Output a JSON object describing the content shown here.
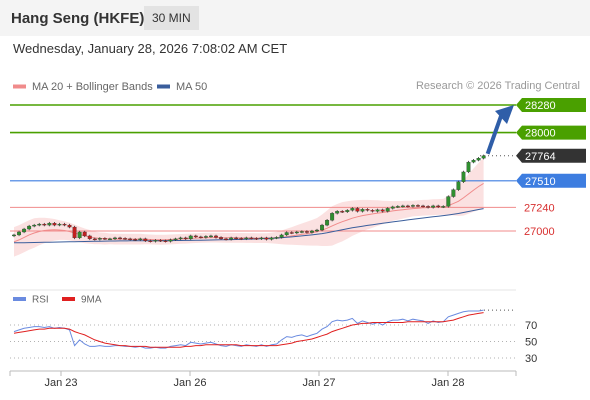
{
  "header": {
    "title": "Hang Seng (HKFE)",
    "interval": "30 MIN"
  },
  "datetime": "Wednesday, January 28, 2026 7:08:02 AM CET",
  "credit": "Research © 2026 Trading Central",
  "legend_main": [
    {
      "label": "MA 20 + Bollinger Bands",
      "color": "#f08b8b"
    },
    {
      "label": "MA 50",
      "color": "#3a5e9c"
    }
  ],
  "legend_rsi": [
    {
      "label": "RSI",
      "color": "#6a8be0"
    },
    {
      "label": "9MA",
      "color": "#e02020"
    }
  ],
  "colors": {
    "green": "#4aa000",
    "blue": "#3d7de0",
    "red": "#f08b8b",
    "dark": "#333333",
    "arrow": "#2f5ea8"
  },
  "chart_data": {
    "type": "candlestick",
    "x_tick_labels": [
      "Jan 23",
      "Jan 26",
      "Jan 27",
      "Jan 28"
    ],
    "levels": [
      {
        "value": 28280,
        "label": "28280",
        "style": "green"
      },
      {
        "value": 28000,
        "label": "28000",
        "style": "green"
      },
      {
        "value": 27764,
        "label": "27764",
        "style": "dark"
      },
      {
        "value": 27510,
        "label": "27510",
        "style": "blue"
      },
      {
        "value": 27240,
        "label": "27240",
        "style": "red"
      },
      {
        "value": 27000,
        "label": "27000",
        "style": "red"
      }
    ],
    "close": [
      26960,
      26990,
      27020,
      27050,
      27060,
      27070,
      27060,
      27080,
      27060,
      27070,
      27060,
      27040,
      26930,
      26990,
      26950,
      26920,
      26915,
      26925,
      26920,
      26920,
      26930,
      26925,
      26920,
      26915,
      26910,
      26920,
      26900,
      26895,
      26905,
      26900,
      26895,
      26910,
      26920,
      26930,
      26920,
      26950,
      26940,
      26935,
      26945,
      26950,
      26935,
      26920,
      26915,
      26930,
      26925,
      26920,
      26930,
      26925,
      26920,
      26930,
      26915,
      26930,
      26935,
      26960,
      26985,
      26980,
      26990,
      26995,
      26985,
      27000,
      27010,
      27060,
      27110,
      27180,
      27200,
      27195,
      27210,
      27230,
      27200,
      27220,
      27210,
      27200,
      27215,
      27200,
      27230,
      27245,
      27250,
      27255,
      27250,
      27260,
      27255,
      27250,
      27240,
      27255,
      27245,
      27250,
      27350,
      27420,
      27500,
      27600,
      27700,
      27720,
      27740,
      27764
    ],
    "ma20": [
      26890,
      26910,
      26935,
      26960,
      26980,
      26995,
      27005,
      27010,
      27012,
      27010,
      27005,
      26995,
      26980,
      26965,
      26950,
      26940,
      26930,
      26925,
      26922,
      26920,
      26918,
      26918,
      26918,
      26918,
      26918,
      26918,
      26916,
      26914,
      26912,
      26911,
      26912,
      26914,
      26917,
      26920,
      26922,
      26925,
      26928,
      26930,
      26932,
      26933,
      26933,
      26932,
      26931,
      26931,
      26930,
      26930,
      26929,
      26929,
      26928,
      26928,
      26928,
      26929,
      26931,
      26935,
      26942,
      26950,
      26958,
      26966,
      26973,
      26982,
      26992,
      27008,
      27028,
      27052,
      27074,
      27094,
      27112,
      27130,
      27144,
      27156,
      27166,
      27174,
      27182,
      27188,
      27196,
      27204,
      27210,
      27216,
      27222,
      27228,
      27232,
      27236,
      27238,
      27242,
      27244,
      27246,
      27258,
      27278,
      27302,
      27336,
      27376,
      27416,
      27452,
      27484
    ],
    "ma50": [
      26880,
      26880,
      26881,
      26882,
      26883,
      26884,
      26885,
      26886,
      26887,
      26888,
      26889,
      26890,
      26891,
      26892,
      26893,
      26894,
      26895,
      26896,
      26897,
      26898,
      26898,
      26899,
      26899,
      26900,
      26900,
      26900,
      26901,
      26901,
      26901,
      26902,
      26902,
      26902,
      26903,
      26903,
      26904,
      26905,
      26906,
      26907,
      26908,
      26909,
      26910,
      26911,
      26912,
      26913,
      26914,
      26915,
      26916,
      26918,
      26920,
      26922,
      26924,
      26926,
      26928,
      26932,
      26936,
      26940,
      26945,
      26950,
      26955,
      26960,
      26966,
      26974,
      26982,
      26992,
      27002,
      27012,
      27022,
      27032,
      27041,
      27049,
      27057,
      27064,
      27071,
      27078,
      27085,
      27092,
      27099,
      27106,
      27113,
      27120,
      27126,
      27132,
      27138,
      27144,
      27150,
      27156,
      27163,
      27170,
      27178,
      27188,
      27198,
      27208,
      27218,
      27228
    ],
    "bb_width": [
      150,
      150,
      150,
      150,
      150,
      140,
      130,
      120,
      110,
      100,
      95,
      90,
      85,
      80,
      75,
      70,
      65,
      60,
      60,
      55,
      55,
      55,
      55,
      55,
      55,
      55,
      50,
      50,
      50,
      50,
      50,
      50,
      50,
      50,
      50,
      50,
      50,
      50,
      50,
      50,
      50,
      50,
      50,
      50,
      50,
      50,
      50,
      50,
      50,
      50,
      50,
      55,
      60,
      70,
      80,
      90,
      100,
      110,
      120,
      130,
      140,
      160,
      180,
      200,
      200,
      200,
      190,
      180,
      170,
      160,
      150,
      140,
      130,
      120,
      110,
      100,
      95,
      90,
      85,
      80,
      80,
      80,
      80,
      80,
      80,
      80,
      100,
      120,
      150,
      180,
      200,
      220,
      240,
      260
    ],
    "rsi": [
      62,
      64,
      66,
      67,
      68,
      68,
      67,
      68,
      66,
      67,
      66,
      64,
      45,
      52,
      47,
      44,
      44,
      45,
      44,
      44,
      45,
      45,
      44,
      44,
      43,
      44,
      42,
      42,
      43,
      42,
      42,
      44,
      45,
      46,
      45,
      49,
      48,
      47,
      48,
      49,
      47,
      45,
      44,
      46,
      45,
      44,
      46,
      45,
      44,
      46,
      44,
      46,
      47,
      52,
      56,
      55,
      57,
      58,
      56,
      58,
      60,
      65,
      68,
      74,
      76,
      75,
      76,
      78,
      72,
      75,
      73,
      71,
      73,
      70,
      74,
      76,
      76,
      77,
      75,
      77,
      76,
      75,
      72,
      75,
      73,
      74,
      80,
      82,
      84,
      86,
      87,
      87,
      87,
      88
    ],
    "rsi_ma9": [
      60,
      61,
      62,
      63,
      64,
      65,
      65,
      66,
      66,
      66,
      66,
      65,
      62,
      60,
      58,
      55,
      52,
      50,
      48,
      47,
      46,
      45,
      45,
      44,
      44,
      44,
      44,
      43,
      43,
      43,
      43,
      43,
      43,
      43,
      44,
      44,
      45,
      45,
      46,
      46,
      46,
      46,
      46,
      46,
      46,
      45,
      45,
      45,
      45,
      45,
      45,
      45,
      45,
      46,
      47,
      48,
      50,
      51,
      52,
      53,
      55,
      57,
      59,
      62,
      64,
      66,
      68,
      70,
      71,
      72,
      72,
      73,
      73,
      73,
      73,
      73,
      73,
      73,
      74,
      74,
      74,
      74,
      74,
      74,
      74,
      74,
      75,
      76,
      78,
      80,
      82,
      83,
      84,
      85
    ],
    "rsi_levels": [
      70,
      50,
      30
    ]
  }
}
